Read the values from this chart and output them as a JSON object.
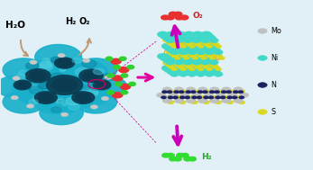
{
  "bg_color": "#e0f0f6",
  "border_color": "#90c0d0",
  "legend_items": [
    {
      "label": "Mo",
      "color": "#c0c0c0",
      "edgecolor": "#888888"
    },
    {
      "label": "Ni",
      "color": "#40d8c8",
      "edgecolor": "#208878"
    },
    {
      "label": "N",
      "color": "#1a2060",
      "edgecolor": "#0a0a30"
    },
    {
      "label": "S",
      "color": "#d8d820",
      "edgecolor": "#909000"
    }
  ],
  "h2o_label": "H₂O",
  "h2_label": "H₂",
  "o2_label": "O₂",
  "pink_arrow_color": "#e000a0",
  "pink_dashed_color": "#e000a0",
  "beige_arrow_color": "#c09878",
  "struct_color_mo": "#c0c0c0",
  "struct_color_ni": "#40d8c8",
  "struct_color_n": "#1a2060",
  "struct_color_s": "#d8d820",
  "struct_bond_color": "#e8a020"
}
